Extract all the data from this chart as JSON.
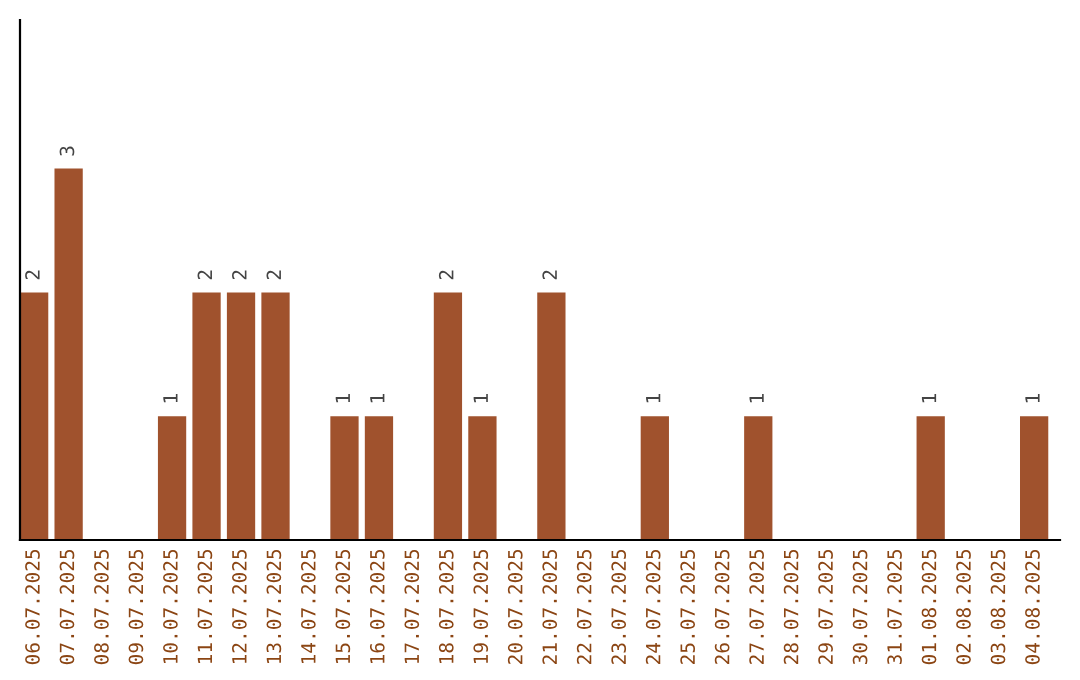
{
  "chart_data": {
    "type": "bar",
    "categories": [
      "06.07.2025",
      "07.07.2025",
      "08.07.2025",
      "09.07.2025",
      "10.07.2025",
      "11.07.2025",
      "12.07.2025",
      "13.07.2025",
      "14.07.2025",
      "15.07.2025",
      "16.07.2025",
      "17.07.2025",
      "18.07.2025",
      "19.07.2025",
      "20.07.2025",
      "21.07.2025",
      "22.07.2025",
      "23.07.2025",
      "24.07.2025",
      "25.07.2025",
      "26.07.2025",
      "27.07.2025",
      "28.07.2025",
      "29.07.2025",
      "30.07.2025",
      "31.07.2025",
      "01.08.2025",
      "02.08.2025",
      "03.08.2025",
      "04.08.2025"
    ],
    "values": [
      2,
      3,
      0,
      0,
      1,
      2,
      2,
      2,
      0,
      1,
      1,
      0,
      2,
      1,
      0,
      2,
      0,
      0,
      1,
      0,
      0,
      1,
      0,
      0,
      0,
      0,
      1,
      0,
      0,
      1
    ],
    "value_labels": [
      "2",
      "3",
      null,
      null,
      "1",
      "2",
      "2",
      "2",
      null,
      "1",
      "1",
      null,
      "2",
      "1",
      null,
      "2",
      null,
      null,
      "1",
      null,
      null,
      "1",
      null,
      null,
      null,
      null,
      "1",
      null,
      null,
      "1"
    ],
    "color": "#a0522d",
    "ylim": [
      0,
      4.2
    ],
    "tick_labels": "x",
    "grid": false,
    "legend": false
  }
}
